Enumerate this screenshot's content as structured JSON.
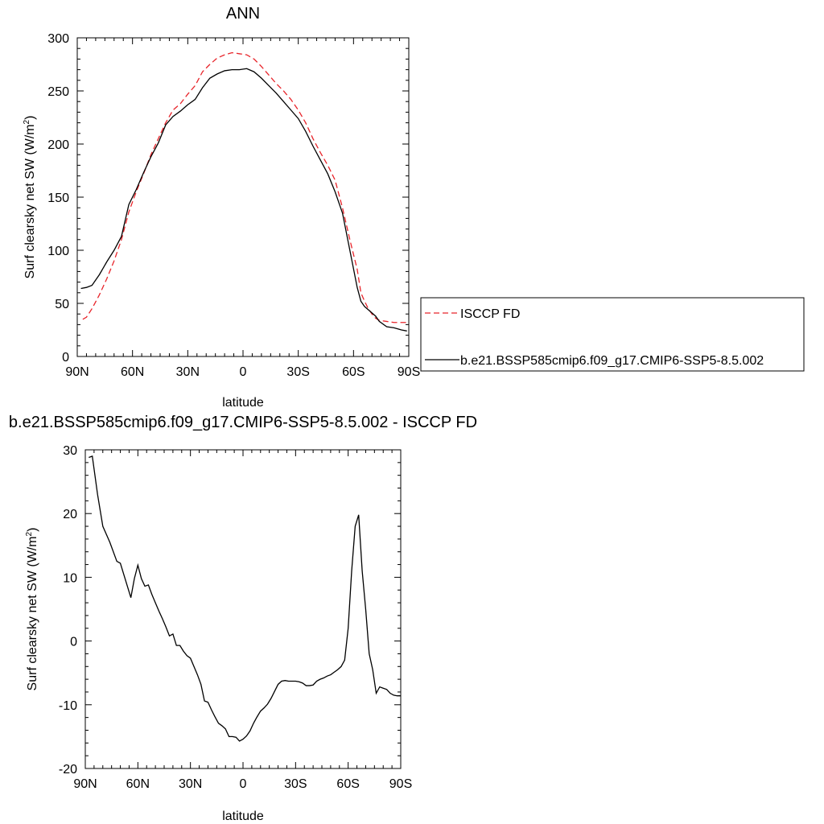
{
  "chart_data": [
    {
      "type": "line",
      "title": "ANN",
      "xlabel": "latitude",
      "ylabel": "Surf clearsky net SW (W/m",
      "ylabel_sup": "2",
      "ylabel_close": ")",
      "x_ticks": [
        {
          "value": 90,
          "label": "90N"
        },
        {
          "value": 60,
          "label": "60N"
        },
        {
          "value": 30,
          "label": "30N"
        },
        {
          "value": 0,
          "label": "0"
        },
        {
          "value": -30,
          "label": "30S"
        },
        {
          "value": -60,
          "label": "60S"
        },
        {
          "value": -90,
          "label": "90S"
        }
      ],
      "xlim": [
        90,
        -90
      ],
      "ylim": [
        0,
        300
      ],
      "y_ticks": [
        0,
        50,
        100,
        150,
        200,
        250,
        300
      ],
      "grid": false,
      "legend": "right",
      "series": [
        {
          "name": "ISCCP FD",
          "color": "#e8242a",
          "dash": "dashed",
          "x": [
            87,
            85,
            82,
            78,
            74,
            70,
            66,
            62,
            58,
            54,
            50,
            46,
            42,
            38,
            34,
            30,
            26,
            22,
            18,
            14,
            10,
            6,
            2,
            -2,
            -6,
            -10,
            -14,
            -18,
            -22,
            -26,
            -30,
            -34,
            -38,
            -42,
            -46,
            -50,
            -54,
            -58,
            -62,
            -64,
            -66,
            -68,
            -70,
            -72,
            -74,
            -78,
            -82,
            -86,
            -89
          ],
          "y": [
            35,
            37,
            45,
            58,
            73,
            90,
            110,
            136,
            155,
            172,
            190,
            205,
            220,
            232,
            238,
            247,
            255,
            268,
            275,
            281,
            284,
            286,
            285,
            284,
            280,
            273,
            265,
            257,
            250,
            242,
            232,
            220,
            205,
            192,
            180,
            166,
            140,
            110,
            82,
            60,
            52,
            45,
            40,
            36,
            34,
            33,
            32,
            32,
            32
          ]
        },
        {
          "name": "b.e21.BSSP585cmip6.f09_g17.CMIP6-SSP5-8.5.002",
          "color": "#000000",
          "dash": "solid",
          "x": [
            88,
            85,
            82,
            78,
            74,
            70,
            66,
            62,
            58,
            54,
            50,
            46,
            42,
            38,
            34,
            30,
            26,
            22,
            18,
            14,
            10,
            6,
            2,
            -2,
            -6,
            -10,
            -14,
            -18,
            -22,
            -26,
            -30,
            -34,
            -38,
            -42,
            -46,
            -50,
            -54,
            -58,
            -62,
            -64,
            -66,
            -68,
            -70,
            -72,
            -74,
            -78,
            -82,
            -86,
            -89
          ],
          "y": [
            64,
            65,
            67,
            77,
            89,
            100,
            113,
            143,
            157,
            173,
            188,
            201,
            218,
            226,
            231,
            237,
            242,
            253,
            262,
            266,
            269,
            270,
            270,
            271,
            268,
            262,
            255,
            248,
            240,
            232,
            224,
            212,
            198,
            185,
            172,
            155,
            135,
            100,
            65,
            52,
            47,
            44,
            41,
            38,
            33,
            28,
            27,
            25,
            24
          ]
        }
      ]
    },
    {
      "type": "line",
      "title": "b.e21.BSSP585cmip6.f09_g17.CMIP6-SSP5-8.5.002 - ISCCP FD",
      "xlabel": "latitude",
      "ylabel": "Surf clearsky net SW (W/m",
      "ylabel_sup": "2",
      "ylabel_close": ")",
      "x_ticks": [
        {
          "value": 90,
          "label": "90N"
        },
        {
          "value": 60,
          "label": "60N"
        },
        {
          "value": 30,
          "label": "30N"
        },
        {
          "value": 0,
          "label": "0"
        },
        {
          "value": -30,
          "label": "30S"
        },
        {
          "value": -60,
          "label": "60S"
        },
        {
          "value": -90,
          "label": "90S"
        }
      ],
      "xlim": [
        90,
        -90
      ],
      "ylim": [
        -20,
        30
      ],
      "y_ticks": [
        -20,
        -10,
        0,
        10,
        20,
        30
      ],
      "grid": false,
      "series": [
        {
          "color": "#000000",
          "dash": "solid",
          "x": [
            88,
            86,
            83,
            80,
            76,
            72,
            70,
            67,
            64,
            62,
            60,
            58,
            56,
            54,
            52,
            50,
            48,
            46,
            44,
            42,
            40,
            38,
            36,
            34,
            32,
            30,
            28,
            26,
            24,
            22,
            20,
            18,
            16,
            14,
            12,
            10,
            8,
            6,
            4,
            2,
            0,
            -2,
            -4,
            -6,
            -8,
            -10,
            -12,
            -14,
            -16,
            -18,
            -20,
            -22,
            -24,
            -26,
            -28,
            -30,
            -32,
            -34,
            -36,
            -38,
            -40,
            -42,
            -44,
            -46,
            -48,
            -50,
            -52,
            -54,
            -56,
            -58,
            -60,
            -62,
            -64,
            -66,
            -68,
            -70,
            -72,
            -74,
            -76,
            -78,
            -80,
            -82,
            -84,
            -86,
            -88,
            -90
          ],
          "y": [
            28.8,
            29,
            23,
            18,
            15.5,
            12.5,
            12.2,
            9.5,
            6.8,
            9.8,
            11.9,
            9.8,
            8.6,
            8.8,
            7.3,
            6,
            4.7,
            3.5,
            2.2,
            0.8,
            1.1,
            -0.7,
            -0.7,
            -1.6,
            -2.3,
            -2.7,
            -4,
            -5.3,
            -6.8,
            -9.4,
            -9.6,
            -10.8,
            -11.9,
            -12.9,
            -13.3,
            -13.8,
            -15,
            -15,
            -15.1,
            -15.7,
            -15.4,
            -14.9,
            -14.1,
            -12.9,
            -11.9,
            -11,
            -10.5,
            -9.9,
            -9,
            -7.9,
            -6.8,
            -6.3,
            -6.2,
            -6.3,
            -6.3,
            -6.3,
            -6.4,
            -6.6,
            -7,
            -7,
            -6.9,
            -6.3,
            -6,
            -5.8,
            -5.5,
            -5.3,
            -4.9,
            -4.5,
            -4,
            -3,
            2,
            11,
            18,
            19.8,
            11,
            5,
            -2,
            -4.5,
            -8.2,
            -7.2,
            -7.4,
            -7.6,
            -8.2,
            -8.5,
            -8.6,
            -8.6
          ]
        }
      ]
    }
  ]
}
